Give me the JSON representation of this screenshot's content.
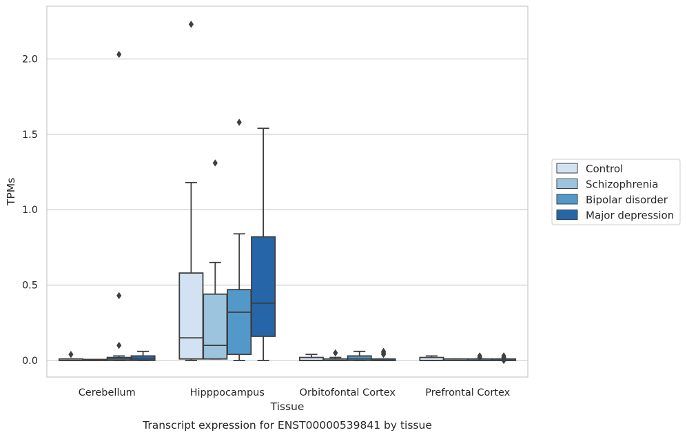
{
  "chart_data": {
    "type": "box",
    "xlabel": "Tissue",
    "ylabel": "TPMs",
    "caption": "Transcript expression for ENST00000539841 by tissue",
    "ylim": [
      -0.11,
      2.35
    ],
    "yticks": [
      0.0,
      0.5,
      1.0,
      1.5,
      2.0
    ],
    "ytick_labels": [
      "0.0",
      "0.5",
      "1.0",
      "1.5",
      "2.0"
    ],
    "grid": "horizontal",
    "legend_placement": "right",
    "categories": [
      "Cerebellum",
      "Hipppocampus",
      "Orbitofontal Cortex",
      "Prefrontal Cortex"
    ],
    "series": [
      {
        "name": "Control",
        "color": "#d2e2f2",
        "boxes": [
          {
            "whislo": 0.0,
            "q1": 0.0,
            "med": 0.0,
            "q3": 0.01,
            "whishi": 0.01,
            "fliers": [
              0.04
            ]
          },
          {
            "whislo": 0.0,
            "q1": 0.01,
            "med": 0.15,
            "q3": 0.58,
            "whishi": 1.18,
            "fliers": [
              2.23
            ]
          },
          {
            "whislo": 0.0,
            "q1": 0.0,
            "med": 0.0,
            "q3": 0.02,
            "whishi": 0.04,
            "fliers": []
          },
          {
            "whislo": 0.0,
            "q1": 0.0,
            "med": 0.0,
            "q3": 0.02,
            "whishi": 0.03,
            "fliers": []
          }
        ]
      },
      {
        "name": "Schizophrenia",
        "color": "#9cc4de",
        "boxes": [
          {
            "whislo": 0.0,
            "q1": 0.0,
            "med": 0.0,
            "q3": 0.0,
            "whishi": 0.0,
            "fliers": []
          },
          {
            "whislo": 0.01,
            "q1": 0.01,
            "med": 0.1,
            "q3": 0.44,
            "whishi": 0.65,
            "fliers": [
              1.31
            ]
          },
          {
            "whislo": 0.0,
            "q1": 0.0,
            "med": 0.0,
            "q3": 0.01,
            "whishi": 0.02,
            "fliers": [
              0.05
            ]
          },
          {
            "whislo": 0.0,
            "q1": 0.0,
            "med": 0.0,
            "q3": 0.01,
            "whishi": 0.01,
            "fliers": []
          }
        ]
      },
      {
        "name": "Bipolar disorder",
        "color": "#5298c9",
        "boxes": [
          {
            "whislo": 0.0,
            "q1": 0.0,
            "med": 0.01,
            "q3": 0.02,
            "whishi": 0.03,
            "fliers": [
              0.1,
              0.43,
              2.03
            ]
          },
          {
            "whislo": 0.0,
            "q1": 0.04,
            "med": 0.32,
            "q3": 0.47,
            "whishi": 0.84,
            "fliers": [
              1.58
            ]
          },
          {
            "whislo": 0.0,
            "q1": 0.0,
            "med": 0.01,
            "q3": 0.03,
            "whishi": 0.06,
            "fliers": []
          },
          {
            "whislo": 0.0,
            "q1": 0.0,
            "med": 0.0,
            "q3": 0.01,
            "whishi": 0.01,
            "fliers": [
              0.02,
              0.03
            ]
          }
        ]
      },
      {
        "name": "Major depression",
        "color": "#2565a8",
        "boxes": [
          {
            "whislo": 0.0,
            "q1": 0.0,
            "med": 0.01,
            "q3": 0.03,
            "whishi": 0.06,
            "fliers": []
          },
          {
            "whislo": 0.0,
            "q1": 0.16,
            "med": 0.38,
            "q3": 0.82,
            "whishi": 1.54,
            "fliers": []
          },
          {
            "whislo": 0.0,
            "q1": 0.0,
            "med": 0.0,
            "q3": 0.01,
            "whishi": 0.01,
            "fliers": [
              0.04,
              0.05,
              0.06
            ]
          },
          {
            "whislo": 0.0,
            "q1": 0.0,
            "med": 0.0,
            "q3": 0.01,
            "whishi": 0.01,
            "fliers": [
              0.0,
              0.01,
              0.02,
              0.03
            ]
          }
        ]
      }
    ]
  }
}
